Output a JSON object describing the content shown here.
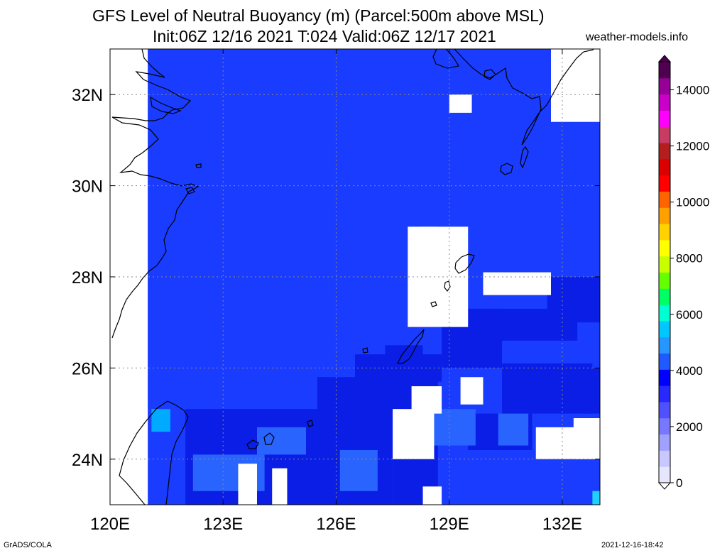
{
  "title": {
    "line1": "GFS Level of Neutral Buoyancy (m) (Parcel:500m above MSL)",
    "line2": "Init:06Z 12/16 2021 T:024 Valid:06Z 12/17 2021"
  },
  "site": "weather-models.info",
  "footer": {
    "software": "GrADS/COLA",
    "timestamp": "2021-12-16-18:42"
  },
  "map": {
    "lon_range": [
      120.0,
      133.0
    ],
    "lat_range": [
      23.0,
      33.0
    ],
    "x_ticks": [
      {
        "lon": 120,
        "label": "120E"
      },
      {
        "lon": 123,
        "label": "123E"
      },
      {
        "lon": 126,
        "label": "126E"
      },
      {
        "lon": 129,
        "label": "129E"
      },
      {
        "lon": 132,
        "label": "132E"
      }
    ],
    "y_ticks": [
      {
        "lat": 24,
        "label": "24N"
      },
      {
        "lat": 26,
        "label": "26N"
      },
      {
        "lat": 28,
        "label": "28N"
      },
      {
        "lat": 30,
        "label": "30N"
      },
      {
        "lat": 32,
        "label": "32N"
      }
    ],
    "gridlines": "dotted"
  },
  "colorbar": {
    "range": [
      0,
      15000
    ],
    "ticks": [
      {
        "value": 0,
        "label": "0"
      },
      {
        "value": 2000,
        "label": "2000"
      },
      {
        "value": 4000,
        "label": "4000"
      },
      {
        "value": 6000,
        "label": "6000"
      },
      {
        "value": 8000,
        "label": "8000"
      },
      {
        "value": 10000,
        "label": "10000"
      },
      {
        "value": 12000,
        "label": "12000"
      },
      {
        "value": 14000,
        "label": "14000"
      }
    ],
    "colors": [
      "#e6e6ff",
      "#c8c8ff",
      "#a0a0ff",
      "#7878ff",
      "#5050ff",
      "#2828ff",
      "#0000ff",
      "#1e5aff",
      "#2896ff",
      "#00c8ff",
      "#00ffd2",
      "#00ff64",
      "#64ff00",
      "#c8ff00",
      "#ffff00",
      "#ffd200",
      "#ffa000",
      "#ff6400",
      "#ff0000",
      "#dc0000",
      "#b41e1e",
      "#c83c64",
      "#ff00ff",
      "#c800c8",
      "#960096",
      "#500050"
    ]
  },
  "field_level_colors": {
    "1": "#1a3cff",
    "2": "#0a1ee6",
    "3": "#2a64ff",
    "4": "#00aaff",
    "5": "#1ed2ff"
  },
  "field_cells_deg": [
    [
      121.0,
      23.0,
      22.5,
      33.0,
      1
    ],
    [
      122.7,
      32.3,
      4.4,
      1.0,
      1
    ],
    [
      122.7,
      31.8,
      1.4,
      0.6,
      1
    ],
    [
      125.3,
      32.0,
      3.0,
      1.1,
      1
    ],
    [
      124.7,
      31.0,
      0.8,
      1.3,
      1
    ],
    [
      127.8,
      32.0,
      0.9,
      1.0,
      1
    ],
    [
      128.4,
      31.4,
      1.9,
      1.9,
      1
    ],
    [
      129.5,
      30.0,
      1.9,
      2.2,
      1
    ],
    [
      128.6,
      29.0,
      1.6,
      1.2,
      1
    ],
    [
      130.7,
      30.0,
      1.3,
      0.8,
      1
    ],
    [
      125.3,
      30.0,
      0.5,
      0.3,
      1
    ],
    [
      125.8,
      29.2,
      0.5,
      0.3,
      1
    ],
    [
      131.9,
      29.2,
      0.3,
      0.3,
      1
    ],
    [
      132.3,
      28.6,
      0.7,
      0.5,
      1
    ],
    [
      122.0,
      23.0,
      5.5,
      2.1,
      2
    ],
    [
      127.5,
      23.0,
      1.2,
      1.3,
      2
    ],
    [
      125.5,
      24.8,
      3.2,
      1.0,
      2
    ],
    [
      126.5,
      25.7,
      2.3,
      0.6,
      2
    ],
    [
      127.3,
      26.0,
      1.0,
      0.5,
      2
    ],
    [
      128.8,
      26.0,
      1.6,
      1.3,
      2
    ],
    [
      129.4,
      26.6,
      3.0,
      0.7,
      2
    ],
    [
      131.6,
      27.0,
      1.4,
      1.0,
      2
    ],
    [
      129.5,
      24.2,
      1.7,
      0.8,
      2
    ],
    [
      130.4,
      25.0,
      2.4,
      1.1,
      2
    ],
    [
      132.5,
      25.0,
      0.5,
      1.0,
      2
    ],
    [
      122.2,
      23.3,
      1.9,
      0.8,
      3
    ],
    [
      123.9,
      24.1,
      1.3,
      0.6,
      3
    ],
    [
      126.1,
      23.3,
      1.0,
      0.9,
      3
    ],
    [
      128.6,
      24.3,
      1.1,
      0.8,
      3
    ],
    [
      130.3,
      24.3,
      0.8,
      0.7,
      3
    ],
    [
      121.1,
      24.6,
      0.5,
      0.5,
      4
    ],
    [
      132.8,
      23.0,
      0.2,
      0.3,
      5
    ]
  ],
  "field_blanks_deg": [
    [
      123.4,
      23.0,
      0.5,
      0.9
    ],
    [
      124.3,
      23.0,
      0.4,
      0.8
    ],
    [
      127.5,
      24.0,
      1.1,
      1.1
    ],
    [
      128.0,
      25.0,
      0.8,
      0.6
    ],
    [
      129.3,
      25.2,
      0.6,
      0.6
    ],
    [
      128.3,
      23.0,
      0.5,
      0.4
    ],
    [
      131.3,
      24.0,
      1.7,
      0.7
    ],
    [
      132.3,
      24.0,
      0.7,
      0.9
    ],
    [
      120.0,
      23.0,
      1.0,
      2.1
    ],
    [
      127.9,
      26.9,
      1.6,
      2.2
    ],
    [
      129.9,
      27.6,
      1.8,
      0.5
    ],
    [
      131.7,
      31.4,
      1.3,
      1.6
    ],
    [
      128.2,
      28.6,
      0.5,
      0.5
    ],
    [
      129.0,
      31.6,
      0.6,
      0.4
    ]
  ]
}
